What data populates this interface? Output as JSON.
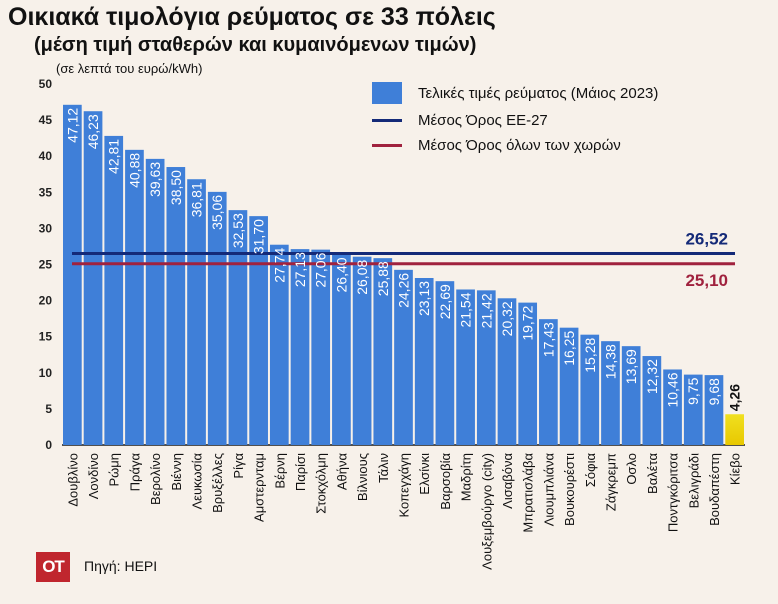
{
  "title": "Οικιακά τιμολόγια ρεύματος σε 33 πόλεις",
  "subtitle": "(μέση τιμή σταθερών και κυμαινόμενων τιμών)",
  "units_note": "(σε λεπτά του ευρώ/kWh)",
  "source": "Πηγή: HEPI",
  "logo_text": "OT",
  "colors": {
    "bar": "#3f7fd8",
    "highlight_bar": "#f0e020",
    "eu27_line": "#142a78",
    "all_line": "#a0223e",
    "logo_bg": "#c0262e"
  },
  "legend": {
    "bars": "Τελικές τιμές ρεύματος (Μάιος 2023)",
    "eu27": "Μέσος Όρος ΕΕ-27",
    "all": "Μέσος Όρος όλων των χωρών"
  },
  "chart_data": {
    "type": "bar",
    "categories": [
      "Δουβλίνο",
      "Λονδίνο",
      "Ρώμη",
      "Πράγα",
      "Βερολίνο",
      "Βιέννη",
      "Λευκωσία",
      "Βρυξέλλες",
      "Ρίγα",
      "Αμστερνταμ",
      "Βέρνη",
      "Παρίσι",
      "Στοκχόλμη",
      "Αθήνα",
      "Βίλνιους",
      "Τάλιν",
      "Κοπεγχάγη",
      "Ελσίνκι",
      "Βαρσοβία",
      "Μαδρίτη",
      "Λουξεμβούργο (city)",
      "Λισαβόνα",
      "Μπρατισλάβα",
      "Λιουμπλιάνα",
      "Βουκουρέστι",
      "Σόφια",
      "Ζάγκρεμπ",
      "Οσλο",
      "Βαλέτα",
      "Ποντγκόριτσα",
      "Βελιγράδι",
      "Βουδαπέστη",
      "Κίεβο"
    ],
    "values": [
      47.12,
      46.23,
      42.81,
      40.88,
      39.63,
      38.5,
      36.81,
      35.06,
      32.53,
      31.7,
      27.74,
      27.13,
      27.06,
      26.4,
      26.08,
      25.88,
      24.26,
      23.13,
      22.69,
      21.54,
      21.42,
      20.32,
      19.72,
      17.43,
      16.25,
      15.28,
      14.38,
      13.69,
      12.32,
      10.46,
      9.75,
      9.68,
      4.26
    ],
    "value_labels": [
      "47,12",
      "46,23",
      "42,81",
      "40,88",
      "39,63",
      "38,50",
      "36,81",
      "35,06",
      "32,53",
      "31,70",
      "27,74",
      "27,13",
      "27,06",
      "26,40",
      "26,08",
      "25,88",
      "24,26",
      "23,13",
      "22,69",
      "21,54",
      "21,42",
      "20,32",
      "19,72",
      "17,43",
      "16,25",
      "15,28",
      "14,38",
      "13,69",
      "12,32",
      "10,46",
      "9,75",
      "9,68",
      "4,26"
    ],
    "highlight_index": 32,
    "ylim": [
      0,
      50
    ],
    "yticks": [
      0,
      5,
      10,
      15,
      20,
      25,
      30,
      35,
      40,
      45,
      50
    ],
    "reference_lines": [
      {
        "name": "Μέσος Όρος ΕΕ-27",
        "value": 26.52,
        "label": "26,52"
      },
      {
        "name": "Μέσος Όρος όλων των χωρών",
        "value": 25.1,
        "label": "25,10"
      }
    ],
    "grid": false,
    "legend_position": "top-right"
  }
}
